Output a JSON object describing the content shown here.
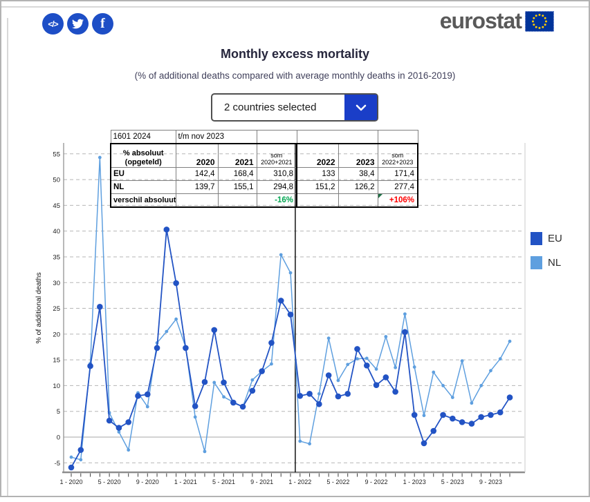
{
  "header": {
    "logo_text": "eurostat",
    "share": {
      "embed_label": "</>"
    }
  },
  "title": "Monthly excess mortality",
  "subtitle": "(% of additional deaths compared with average monthly deaths in 2016-2019)",
  "dropdown": {
    "value": "2 countries selected"
  },
  "overlay_table": {
    "info_row": {
      "date": "1601 2024",
      "period": "t/m nov 2023"
    },
    "header_row": {
      "c0a": "% absoluut",
      "c0b": "(opgeteld)",
      "y2020": "2020",
      "y2021": "2021",
      "som1a": "som",
      "som1b": "2020+2021",
      "y2022": "2022",
      "y2023": "2023",
      "som2a": "som",
      "som2b": "2022+2023"
    },
    "rows": [
      [
        "EU",
        "142,4",
        "168,4",
        "310,8",
        "133",
        "38,4",
        "171,4"
      ],
      [
        "NL",
        "139,7",
        "155,1",
        "294,8",
        "151,2",
        "126,2",
        "277,4"
      ]
    ],
    "diff_row": {
      "label": "verschil absoluut",
      "som1": "-16%",
      "som2": "+106%"
    },
    "colors": {
      "positive_diff": "#00a550",
      "negative_diff": "#fe0000"
    }
  },
  "chart_data": {
    "type": "line",
    "title": "Monthly excess mortality",
    "xlabel": "",
    "ylabel": "% of additional deaths",
    "ylim": [
      -7.5,
      57
    ],
    "yticks": [
      55,
      50,
      45,
      40,
      35,
      30,
      25,
      20,
      15,
      10,
      5,
      0,
      -5
    ],
    "grid": "horizontal-dashed",
    "legend_position": "right",
    "separator_after": "12-2021",
    "x_tick_labels": [
      "1 - 2020",
      "5 - 2020",
      "9 - 2020",
      "1 - 2021",
      "5 - 2021",
      "9 - 2021",
      "1 - 2022",
      "5 - 2022",
      "9 - 2022",
      "1 - 2023",
      "5 - 2023",
      "9 - 2023"
    ],
    "months": [
      "1-2020",
      "2-2020",
      "3-2020",
      "4-2020",
      "5-2020",
      "6-2020",
      "7-2020",
      "8-2020",
      "9-2020",
      "10-2020",
      "11-2020",
      "12-2020",
      "1-2021",
      "2-2021",
      "3-2021",
      "4-2021",
      "5-2021",
      "6-2021",
      "7-2021",
      "8-2021",
      "9-2021",
      "10-2021",
      "11-2021",
      "12-2021",
      "1-2022",
      "2-2022",
      "3-2022",
      "4-2022",
      "5-2022",
      "6-2022",
      "7-2022",
      "8-2022",
      "9-2022",
      "10-2022",
      "11-2022",
      "12-2022",
      "1-2023",
      "2-2023",
      "3-2023",
      "4-2023",
      "5-2023",
      "6-2023",
      "7-2023",
      "8-2023",
      "9-2023",
      "10-2023",
      "11-2023"
    ],
    "series": [
      {
        "name": "EU",
        "color": "#2253c4",
        "values": [
          -5.9,
          -2.5,
          13.8,
          25.3,
          3.2,
          1.8,
          2.9,
          8.0,
          8.3,
          17.3,
          40.3,
          29.9,
          17.3,
          6.0,
          10.7,
          20.8,
          10.6,
          6.7,
          5.9,
          9.0,
          12.8,
          18.3,
          26.5,
          23.8,
          8.0,
          8.4,
          6.4,
          12.0,
          7.9,
          8.4,
          17.1,
          13.9,
          10.1,
          11.6,
          8.8,
          20.4,
          4.3,
          -1.2,
          1.2,
          4.3,
          3.6,
          2.9,
          2.6,
          3.9,
          4.3,
          4.8,
          7.7
        ]
      },
      {
        "name": "NL",
        "color": "#5e9fdf",
        "values": [
          -3.9,
          -4.4,
          14.3,
          54.3,
          4.7,
          1.0,
          -2.5,
          8.6,
          5.9,
          18.3,
          20.5,
          22.9,
          17.5,
          3.9,
          -2.8,
          10.6,
          7.8,
          6.8,
          5.9,
          11.1,
          12.8,
          14.2,
          35.4,
          31.9,
          -0.8,
          -1.3,
          8.4,
          19.2,
          11.0,
          14.1,
          15.2,
          15.3,
          13.2,
          19.5,
          13.5,
          23.9,
          13.6,
          4.2,
          12.6,
          10.0,
          7.7,
          14.8,
          6.6,
          10.0,
          12.9,
          15.2,
          18.6
        ]
      }
    ]
  },
  "legend": {
    "items": [
      {
        "label": "EU",
        "color": "#2253c4"
      },
      {
        "label": "NL",
        "color": "#5e9fdf"
      }
    ]
  }
}
